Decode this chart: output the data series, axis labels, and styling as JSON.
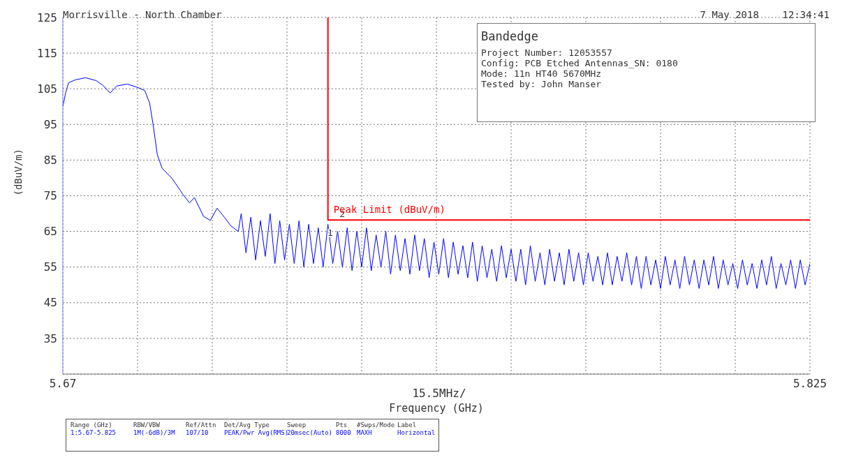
{
  "chart_data": {
    "type": "line",
    "title": "Morrisville - North Chamber",
    "xlabel": "Frequency (GHz)",
    "ylabel": "(dBuV/m)",
    "xlim": [
      5.67,
      5.825
    ],
    "xticks": [
      5.67,
      {
        "value": 5.6855,
        "label": null
      },
      {
        "value": 5.701,
        "label": null
      },
      {
        "value": 5.7165,
        "label": null
      },
      {
        "value": 5.732,
        "label": null
      },
      {
        "value": 5.7475,
        "label": null
      },
      {
        "value": 5.763,
        "label": null
      },
      {
        "value": 5.7785,
        "label": null
      },
      {
        "value": 5.794,
        "label": null
      },
      {
        "value": 5.8095,
        "label": null
      },
      5.825
    ],
    "ylim": [
      25,
      125
    ],
    "yticks": [
      {
        "value": 25,
        "label": null
      },
      35,
      45,
      55,
      65,
      75,
      85,
      95,
      105,
      115,
      125
    ],
    "grid": true,
    "marker": "none",
    "line_style": "solid",
    "annotations": [
      "7 May 2018    12:34:41",
      "Bandedge",
      "Project Number: 12053557",
      "Config: PCB Etched Antennas_SN: 0180",
      "Mode: 11n HT40 5670MHz",
      "Tested by: John Manser",
      "Range (GHz)",
      "RBW/VBW",
      "Ref/Attn",
      "Det/Avg Type",
      "Sweep",
      "Pts",
      "#Swps/Mode",
      "Label",
      "1:5.67-5.825",
      "1M(-6dB)/3M",
      "107/10",
      "PEAK/Pwr Avg(RMS)",
      "20msec(Auto)",
      "8000",
      "MAXH",
      "Horizontal",
      "15.5MHz/",
      {
        "text": "1",
        "x": 5.7246,
        "y": 63
      },
      {
        "text": "2",
        "x": 5.7271,
        "y": 68.2
      }
    ],
    "series": [
      {
        "color": "#0000ff",
        "x": [
          5.67,
          5.6706,
          5.6712,
          5.6726,
          5.6747,
          5.6769,
          5.6783,
          5.6798,
          5.6812,
          5.6834,
          5.6855,
          5.687,
          5.688,
          5.6887,
          5.6896,
          5.6906,
          5.6927,
          5.6949,
          5.6963,
          5.6973,
          5.6992,
          5.7006,
          5.702,
          5.7035,
          5.7049,
          5.7064,
          5.707,
          5.708,
          5.709,
          5.71,
          5.711,
          5.712,
          5.713,
          5.714,
          5.715,
          5.716,
          5.717,
          5.718,
          5.719,
          5.72,
          5.721,
          5.722,
          5.723,
          5.724,
          5.725,
          5.726,
          5.727,
          5.728,
          5.729,
          5.73,
          5.731,
          5.732,
          5.733,
          5.734,
          5.735,
          5.736,
          5.737,
          5.738,
          5.739,
          5.74,
          5.741,
          5.742,
          5.743,
          5.744,
          5.745,
          5.746,
          5.747,
          5.748,
          5.749,
          5.75,
          5.751,
          5.752,
          5.753,
          5.754,
          5.755,
          5.756,
          5.757,
          5.758,
          5.759,
          5.76,
          5.761,
          5.762,
          5.763,
          5.764,
          5.765,
          5.766,
          5.767,
          5.768,
          5.769,
          5.77,
          5.771,
          5.772,
          5.773,
          5.774,
          5.775,
          5.776,
          5.777,
          5.778,
          5.779,
          5.78,
          5.781,
          5.782,
          5.783,
          5.784,
          5.785,
          5.786,
          5.787,
          5.788,
          5.789,
          5.79,
          5.791,
          5.792,
          5.793,
          5.794,
          5.795,
          5.796,
          5.797,
          5.798,
          5.799,
          5.8,
          5.801,
          5.802,
          5.803,
          5.804,
          5.805,
          5.806,
          5.807,
          5.808,
          5.809,
          5.81,
          5.811,
          5.812,
          5.813,
          5.814,
          5.815,
          5.816,
          5.817,
          5.818,
          5.819,
          5.82,
          5.821,
          5.822,
          5.823,
          5.824,
          5.825
        ],
        "values": [
          100,
          104,
          106.7,
          107.5,
          108.1,
          107.3,
          106,
          103.8,
          105.8,
          106.3,
          105.4,
          104.5,
          101,
          95.2,
          86.5,
          82.7,
          79.8,
          75.4,
          73,
          74.5,
          69.2,
          68.1,
          71.5,
          69,
          66.5,
          65,
          70,
          59,
          69,
          57,
          68,
          58,
          70,
          56,
          68,
          57,
          67,
          56,
          68,
          55,
          67,
          56,
          66,
          55,
          67,
          56,
          65,
          55,
          66,
          54,
          65,
          55,
          66,
          54,
          64,
          55,
          65,
          53,
          64,
          54,
          63,
          53,
          64,
          54,
          63,
          52,
          62,
          53,
          63,
          52,
          62,
          53,
          61,
          52,
          62,
          51,
          61,
          52,
          60,
          51,
          61,
          52,
          60,
          51,
          60,
          50,
          61,
          51,
          59,
          50,
          60,
          51,
          59,
          50,
          60,
          51,
          59,
          50,
          59,
          51,
          58,
          50,
          59,
          50,
          58,
          51,
          59,
          50,
          58,
          49,
          58,
          50,
          57,
          49,
          58,
          50,
          57,
          49,
          58,
          50,
          57,
          49,
          57,
          50,
          58,
          49,
          57,
          50,
          56,
          49,
          57,
          50,
          56,
          49,
          57,
          50,
          58,
          49,
          56,
          50,
          57,
          49,
          57,
          50,
          56
        ]
      },
      {
        "name": "Peak Limit (dBuV/m)",
        "color": "#ff0000",
        "x": [
          5.725,
          5.725,
          5.825
        ],
        "values": [
          125,
          68.2,
          68.2
        ]
      }
    ]
  }
}
